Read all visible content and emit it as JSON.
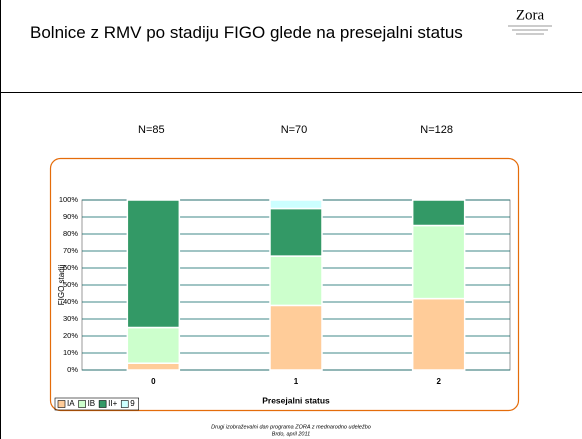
{
  "header": {
    "title": "Bolnice z RMV po stadiju FIGO glede na presejalni status",
    "logo": "Zora"
  },
  "footer": [
    "Drugi izobraževalni dan programa ZORA z mednarodno udeležbo",
    "Brdo, april 2011"
  ],
  "chart_data": {
    "type": "stacked_bar",
    "annotations": [
      "N=85",
      "N=70",
      "N=128"
    ],
    "categories": [
      "0",
      "1",
      "2"
    ],
    "xlabel": "Presejalni status",
    "ylabel": "FIGO stadij",
    "series": [
      {
        "name": "IA",
        "color": "#ffcc99",
        "values": [
          4,
          38,
          42
        ]
      },
      {
        "name": "IB",
        "color": "#ccffcc",
        "values": [
          21,
          29,
          43
        ]
      },
      {
        "name": "II+",
        "color": "#339966",
        "values": [
          75,
          28,
          15
        ]
      },
      {
        "name": "9",
        "color": "#ccffff",
        "values": [
          0,
          5,
          0
        ]
      }
    ],
    "ylim": [
      0,
      100
    ],
    "yticks": [
      {
        "value": 0,
        "label": "0%"
      },
      {
        "value": 10,
        "label": "10%"
      },
      {
        "value": 20,
        "label": "20%"
      },
      {
        "value": 30,
        "label": "30%"
      },
      {
        "value": 40,
        "label": "40%"
      },
      {
        "value": 50,
        "label": "50%"
      },
      {
        "value": 60,
        "label": "60%"
      },
      {
        "value": 70,
        "label": "70%"
      },
      {
        "value": 80,
        "label": "80%"
      },
      {
        "value": 90,
        "label": "90%"
      },
      {
        "value": 100,
        "label": "100%"
      }
    ],
    "grid": true
  }
}
